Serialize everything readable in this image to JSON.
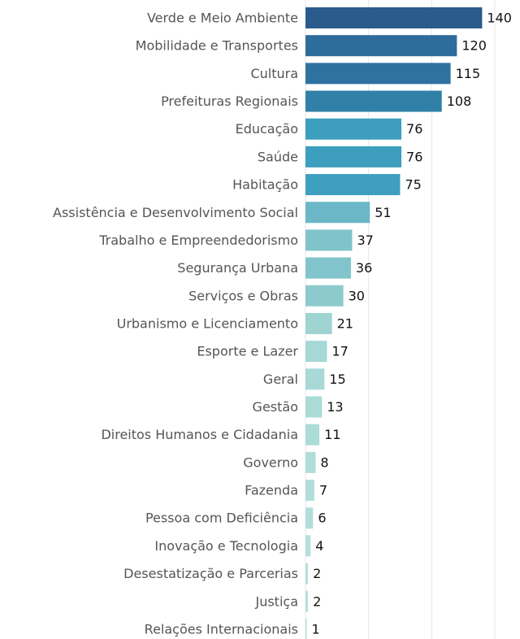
{
  "chart_data": {
    "type": "bar",
    "orientation": "horizontal",
    "categories": [
      "Verde e Meio Ambiente",
      "Mobilidade e Transportes",
      "Cultura",
      "Prefeituras Regionais",
      "Educação",
      "Saúde",
      "Habitação",
      "Assistência e Desenvolvimento Social",
      "Trabalho e Empreendedorismo",
      "Segurança Urbana",
      "Serviços e Obras",
      "Urbanismo e Licenciamento",
      "Esporte e Lazer",
      "Geral",
      "Gestão",
      "Direitos Humanos e Cidadania",
      "Governo",
      "Fazenda",
      "Pessoa com Deficiência",
      "Inovação e Tecnologia",
      "Desestatização e Parcerias",
      "Justiça",
      "Relações Internacionais"
    ],
    "values": [
      140,
      120,
      115,
      108,
      76,
      76,
      75,
      51,
      37,
      36,
      30,
      21,
      17,
      15,
      13,
      11,
      8,
      7,
      6,
      4,
      2,
      2,
      1
    ],
    "colors": [
      "#2b5b8c",
      "#2e6c9c",
      "#2f72a0",
      "#3180a8",
      "#3d9ebe",
      "#3d9ebe",
      "#3e9fbf",
      "#6bb7c8",
      "#80c3cb",
      "#81c4cb",
      "#8dcacd",
      "#9fd4d2",
      "#a6d8d5",
      "#a8d9d6",
      "#aadbd7",
      "#acdcd8",
      "#b0ddd9",
      "#b1ddd9",
      "#b2dedA",
      "#b4dfdb",
      "#b6e0dc",
      "#b6e0dc",
      "#b8e1dd"
    ],
    "xlim": [
      0,
      170
    ],
    "xticks": [
      0,
      50,
      100,
      150
    ],
    "grid": true
  }
}
